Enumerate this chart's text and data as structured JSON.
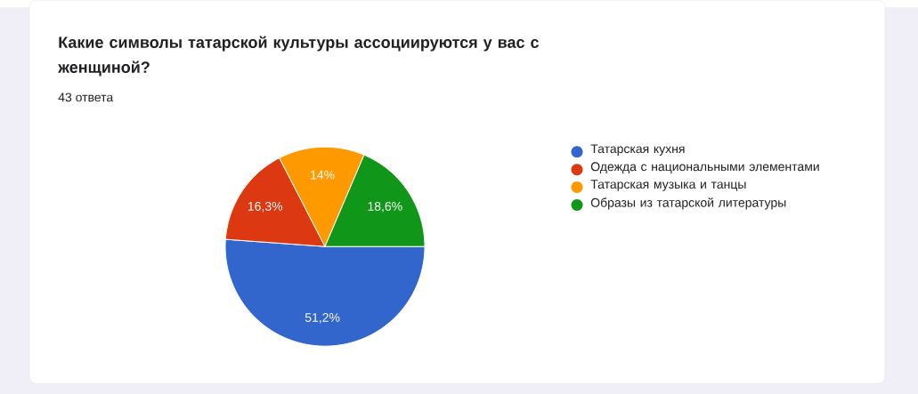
{
  "chart_data": {
    "type": "pie",
    "title": "Какие символы татарской культуры ассоциируются у вас с женщиной?",
    "subtitle": "43 ответа",
    "categories": [
      "Татарская кухня",
      "Одежда с национальными элементами",
      "Татарская музыка и танцы",
      "Образы из татарской литературы"
    ],
    "values": [
      51.2,
      16.3,
      14,
      18.6
    ],
    "value_labels": [
      "51,2%",
      "16,3%",
      "14%",
      "18,6%"
    ],
    "colors": [
      "#3366cc",
      "#dc3912",
      "#ff9900",
      "#109618"
    ],
    "legend": "right"
  }
}
